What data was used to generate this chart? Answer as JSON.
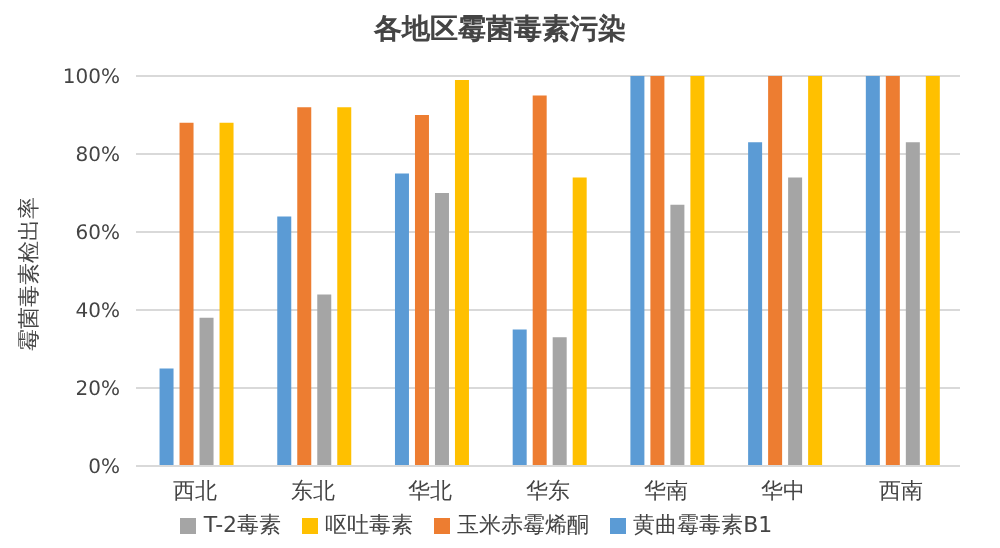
{
  "chart_data": {
    "type": "bar",
    "title": "各地区霉菌毒素污染",
    "ylabel": "霉菌毒素检出率",
    "categories": [
      "西北",
      "东北",
      "华北",
      "华东",
      "华南",
      "华中",
      "西南"
    ],
    "series": [
      {
        "name": "黄曲霉毒素B1",
        "color": "#5b9bd5",
        "values": [
          25,
          64,
          75,
          35,
          100,
          83,
          100
        ]
      },
      {
        "name": "玉米赤霉烯酮",
        "color": "#ed7d31",
        "values": [
          88,
          92,
          90,
          95,
          100,
          100,
          100
        ]
      },
      {
        "name": "T-2毒素",
        "color": "#a5a5a5",
        "values": [
          38,
          44,
          70,
          33,
          67,
          74,
          83
        ]
      },
      {
        "name": "呕吐毒素",
        "color": "#ffc000",
        "values": [
          88,
          92,
          99,
          74,
          100,
          100,
          100
        ]
      }
    ],
    "ylim": [
      0,
      100
    ],
    "yticks": [
      {
        "value": 0,
        "label": "0%"
      },
      {
        "value": 20,
        "label": "20%"
      },
      {
        "value": 40,
        "label": "40%"
      },
      {
        "value": 60,
        "label": "60%"
      },
      {
        "value": 80,
        "label": "80%"
      },
      {
        "value": 100,
        "label": "100%"
      }
    ],
    "grid": "y",
    "legend": "bottom"
  }
}
